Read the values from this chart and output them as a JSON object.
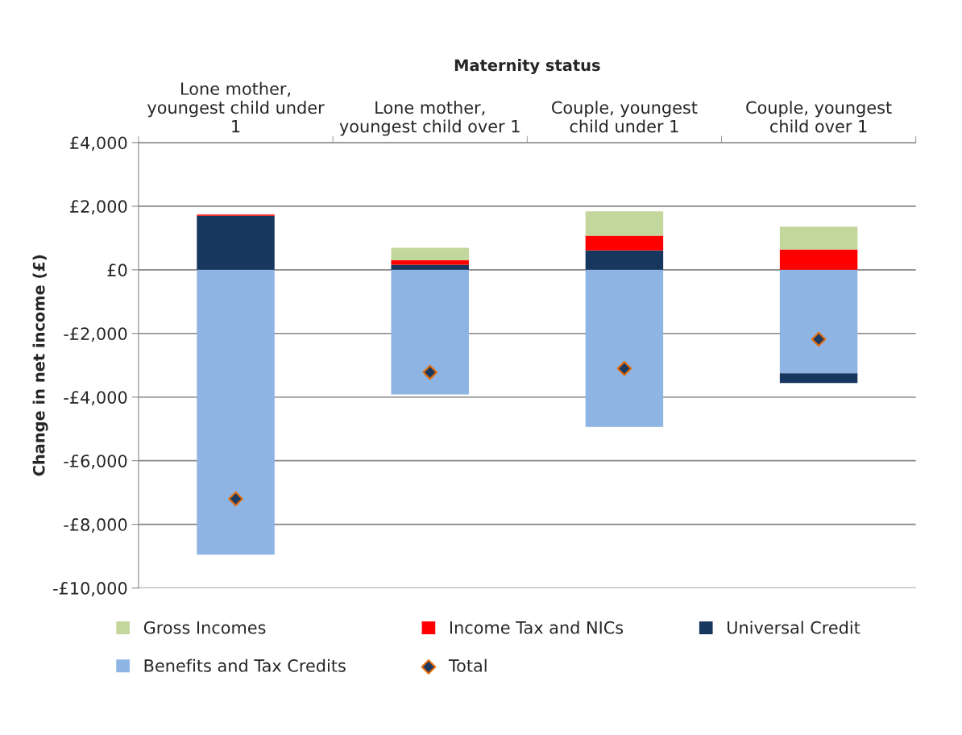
{
  "chart_data": {
    "type": "bar",
    "stacked": true,
    "xlabel": "Maternity status",
    "ylabel": "Change in net income (£)",
    "categories": [
      "Lone mother,\nyoungest child under\n1",
      "Lone mother,\nyoungest child over 1",
      "Couple, youngest\nchild under 1",
      "Couple, youngest\nchild over 1"
    ],
    "series": [
      {
        "name": "Benefits and Tax Credits",
        "color": "#8eb4e3",
        "values": [
          -8950,
          -3920,
          -4940,
          -3250
        ]
      },
      {
        "name": "Universal Credit",
        "color": "#17375e",
        "values": [
          1700,
          160,
          610,
          -310
        ]
      },
      {
        "name": "Income Tax and NICs",
        "color": "#ff0000",
        "values": [
          40,
          140,
          460,
          640
        ]
      },
      {
        "name": "Gross Incomes",
        "color": "#c3d69b",
        "values": [
          0,
          390,
          770,
          715
        ]
      },
      {
        "name": "Total",
        "type": "scatter",
        "marker": "diamond",
        "color": "#1f3a60",
        "values": [
          -7200,
          -3220,
          -3100,
          -2180
        ]
      }
    ],
    "ylim": [
      -10000,
      4000
    ],
    "yticks": [
      {
        "value": -10000,
        "label": "-£10,000"
      },
      {
        "value": -8000,
        "label": "-£8,000"
      },
      {
        "value": -6000,
        "label": "-£6,000"
      },
      {
        "value": -4000,
        "label": "-£4,000"
      },
      {
        "value": -2000,
        "label": "-£2,000"
      },
      {
        "value": 0,
        "label": "£0"
      },
      {
        "value": 2000,
        "label": "£2,000"
      },
      {
        "value": 4000,
        "label": "£4,000"
      }
    ],
    "grid": "y",
    "legend": "bottom"
  }
}
